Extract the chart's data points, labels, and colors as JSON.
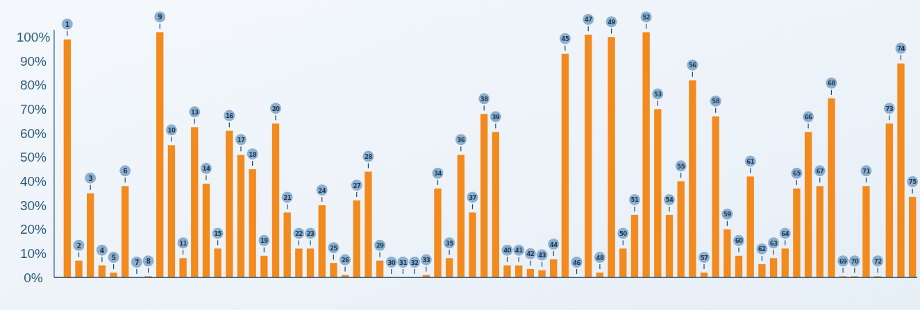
{
  "chart_data": {
    "type": "bar",
    "categories": [
      "1",
      "2",
      "3",
      "4",
      "5",
      "6",
      "7",
      "8",
      "9",
      "10",
      "11",
      "13",
      "14",
      "15",
      "16",
      "17",
      "18",
      "19",
      "20",
      "21",
      "22",
      "23",
      "24",
      "25",
      "26",
      "27",
      "28",
      "29",
      "30",
      "31",
      "32",
      "33",
      "34",
      "35",
      "36",
      "37",
      "38",
      "39",
      "40",
      "41",
      "42",
      "43",
      "44",
      "45",
      "46",
      "47",
      "48",
      "49",
      "50",
      "51",
      "52",
      "53",
      "54",
      "55",
      "56",
      "57",
      "58",
      "59",
      "60",
      "61",
      "62",
      "63",
      "64",
      "65",
      "66",
      "67",
      "68",
      "69",
      "70",
      "71",
      "72",
      "73",
      "74",
      "75"
    ],
    "values": [
      99,
      7,
      35,
      5,
      2,
      38,
      0,
      0.5,
      102,
      55,
      8,
      62.5,
      39,
      12,
      61,
      51,
      45,
      9,
      64,
      27,
      12,
      12,
      30,
      6,
      1,
      32,
      44,
      7,
      0,
      0,
      0,
      1,
      37,
      8,
      51,
      27,
      68,
      60.5,
      5,
      5,
      3.5,
      3,
      7.5,
      93,
      0,
      101,
      2,
      100,
      12,
      26,
      102,
      70,
      26,
      40,
      82,
      2,
      67,
      20,
      9,
      42,
      5.5,
      8,
      12,
      37,
      60.5,
      38,
      74.5,
      0.5,
      0.5,
      38,
      0.5,
      64,
      89,
      33.5
    ],
    "color": "#f28a1e",
    "ylim": [
      0,
      103
    ],
    "yticks": [
      {
        "value": 0,
        "label": "0%"
      },
      {
        "value": 10,
        "label": "10%"
      },
      {
        "value": 20,
        "label": "20%"
      },
      {
        "value": 30,
        "label": "30%"
      },
      {
        "value": 40,
        "label": "40%"
      },
      {
        "value": 50,
        "label": "50%"
      },
      {
        "value": 60,
        "label": "60%"
      },
      {
        "value": 70,
        "label": "70%"
      },
      {
        "value": 80,
        "label": "80%"
      },
      {
        "value": 90,
        "label": "90%"
      },
      {
        "value": 100,
        "label": "100%"
      }
    ],
    "grid": false
  }
}
